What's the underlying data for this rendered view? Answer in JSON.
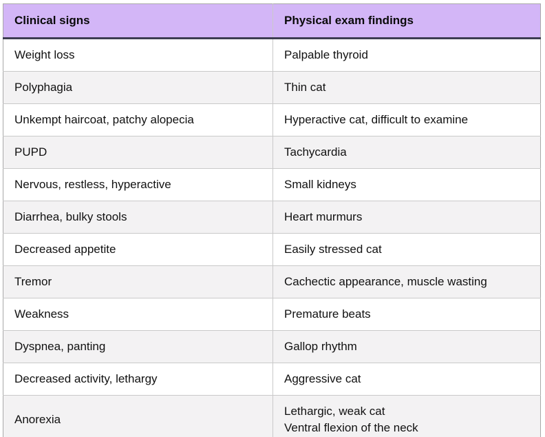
{
  "table": {
    "columns": [
      {
        "label": "Clinical signs"
      },
      {
        "label": "Physical exam findings"
      }
    ],
    "rows": [
      {
        "clinical_sign": "Weight loss",
        "exam_finding": "Palpable thyroid"
      },
      {
        "clinical_sign": "Polyphagia",
        "exam_finding": "Thin cat"
      },
      {
        "clinical_sign": "Unkempt haircoat, patchy alopecia",
        "exam_finding": "Hyperactive cat, difficult to examine"
      },
      {
        "clinical_sign": "PUPD",
        "exam_finding": "Tachycardia"
      },
      {
        "clinical_sign": "Nervous, restless, hyperactive",
        "exam_finding": "Small kidneys"
      },
      {
        "clinical_sign": "Diarrhea, bulky stools",
        "exam_finding": "Heart murmurs"
      },
      {
        "clinical_sign": "Decreased appetite",
        "exam_finding": "Easily stressed cat"
      },
      {
        "clinical_sign": "Tremor",
        "exam_finding": "Cachectic appearance, muscle wasting"
      },
      {
        "clinical_sign": "Weakness",
        "exam_finding": "Premature beats"
      },
      {
        "clinical_sign": "Dyspnea, panting",
        "exam_finding": "Gallop rhythm"
      },
      {
        "clinical_sign": "Decreased activity, lethargy",
        "exam_finding": "Aggressive cat"
      },
      {
        "clinical_sign": "Anorexia",
        "exam_finding": "Lethargic, weak cat\nVentral flexion of the neck"
      }
    ]
  },
  "colors": {
    "header_bg": "#d3b6f7",
    "header_underline": "#3d3d52",
    "row_alt_bg": "#f3f2f3",
    "grid_line": "#c9c9c9",
    "outer_border": "#a8a8a8",
    "text": "#111111"
  }
}
